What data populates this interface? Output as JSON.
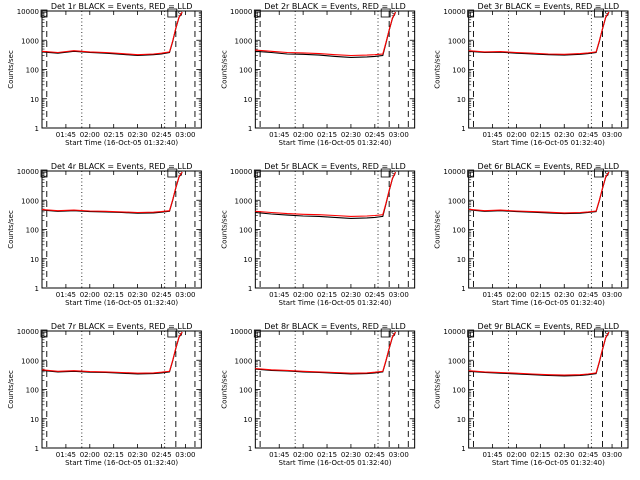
{
  "figure": {
    "xlabel": "Start Time (16-Oct-05 01:32:40)",
    "ylabel": "Counts/sec",
    "legend_text": "BLACK = Events, RED = LLD",
    "corner_marks": [
      "D",
      "S"
    ]
  },
  "colors": {
    "events": "#000000",
    "lld": "#ff0000",
    "background": "#ffffff"
  },
  "chart_data": [
    {
      "type": "line",
      "title": "Det 1r BLACK = Events, RED = LLD",
      "x_ticks": [
        "01:45",
        "02:00",
        "02:15",
        "02:30",
        "02:45",
        "03:00"
      ],
      "y_ticks": [
        "1",
        "10",
        "100",
        "1000",
        "10000"
      ],
      "ylog": true,
      "ylim": [
        1,
        10000
      ],
      "series": [
        {
          "name": "Events",
          "color": "black",
          "x": [
            0,
            10,
            20,
            30,
            40,
            50,
            60,
            70,
            75,
            80,
            82,
            84,
            86,
            88
          ],
          "y": [
            400,
            360,
            420,
            380,
            360,
            330,
            300,
            320,
            340,
            380,
            900,
            2500,
            6000,
            9000
          ]
        },
        {
          "name": "LLD",
          "color": "red",
          "x": [
            0,
            10,
            20,
            30,
            40,
            50,
            60,
            70,
            75,
            80,
            82,
            84,
            86,
            88
          ],
          "y": [
            420,
            380,
            440,
            400,
            380,
            350,
            320,
            340,
            360,
            400,
            950,
            2600,
            6200,
            9200
          ]
        }
      ]
    },
    {
      "type": "line",
      "title": "Det 2r BLACK = Events, RED = LLD",
      "x_ticks": [
        "01:45",
        "02:00",
        "02:15",
        "02:30",
        "02:45",
        "03:00"
      ],
      "y_ticks": [
        "1",
        "10",
        "100",
        "1000",
        "10000"
      ],
      "ylog": true,
      "ylim": [
        1,
        10000
      ],
      "series": [
        {
          "name": "Events",
          "color": "black",
          "x": [
            0,
            10,
            20,
            30,
            40,
            50,
            60,
            70,
            75,
            80,
            82,
            84,
            86,
            88
          ],
          "y": [
            420,
            380,
            340,
            330,
            310,
            280,
            260,
            270,
            280,
            300,
            800,
            2200,
            5500,
            9000
          ]
        },
        {
          "name": "LLD",
          "color": "red",
          "x": [
            0,
            10,
            20,
            30,
            40,
            50,
            60,
            70,
            75,
            80,
            82,
            84,
            86,
            88
          ],
          "y": [
            460,
            420,
            380,
            370,
            350,
            320,
            300,
            310,
            320,
            340,
            850,
            2300,
            5700,
            9200
          ]
        }
      ]
    },
    {
      "type": "line",
      "title": "Det 3r BLACK = Events, RED = LLD",
      "x_ticks": [
        "01:45",
        "02:00",
        "02:15",
        "02:30",
        "02:45",
        "03:00"
      ],
      "y_ticks": [
        "1",
        "10",
        "100",
        "1000",
        "10000"
      ],
      "ylog": true,
      "ylim": [
        1,
        10000
      ],
      "series": [
        {
          "name": "Events",
          "color": "black",
          "x": [
            0,
            10,
            20,
            30,
            40,
            50,
            60,
            70,
            75,
            80,
            82,
            84,
            86,
            88
          ],
          "y": [
            420,
            380,
            390,
            360,
            340,
            320,
            310,
            330,
            350,
            380,
            900,
            2400,
            6000,
            9000
          ]
        },
        {
          "name": "LLD",
          "color": "red",
          "x": [
            0,
            10,
            20,
            30,
            40,
            50,
            60,
            70,
            75,
            80,
            82,
            84,
            86,
            88
          ],
          "y": [
            440,
            400,
            410,
            380,
            360,
            340,
            330,
            350,
            370,
            400,
            950,
            2500,
            6200,
            9200
          ]
        }
      ]
    },
    {
      "type": "line",
      "title": "Det 4r BLACK = Events, RED = LLD",
      "x_ticks": [
        "01:45",
        "02:00",
        "02:15",
        "02:30",
        "02:45",
        "03:00"
      ],
      "y_ticks": [
        "1",
        "10",
        "100",
        "1000",
        "10000"
      ],
      "ylog": true,
      "ylim": [
        1,
        10000
      ],
      "series": [
        {
          "name": "Events",
          "color": "black",
          "x": [
            0,
            10,
            20,
            30,
            40,
            50,
            60,
            70,
            75,
            80,
            82,
            84,
            86,
            88
          ],
          "y": [
            460,
            420,
            440,
            410,
            400,
            380,
            360,
            370,
            390,
            420,
            1000,
            2600,
            6200,
            9000
          ]
        },
        {
          "name": "LLD",
          "color": "red",
          "x": [
            0,
            10,
            20,
            30,
            40,
            50,
            60,
            70,
            75,
            80,
            82,
            84,
            86,
            88
          ],
          "y": [
            480,
            440,
            460,
            430,
            420,
            400,
            380,
            390,
            410,
            440,
            1050,
            2700,
            6400,
            9200
          ]
        }
      ]
    },
    {
      "type": "line",
      "title": "Det 5r BLACK = Events, RED = LLD",
      "x_ticks": [
        "01:45",
        "02:00",
        "02:15",
        "02:30",
        "02:45",
        "03:00"
      ],
      "y_ticks": [
        "1",
        "10",
        "100",
        "1000",
        "10000"
      ],
      "ylog": true,
      "ylim": [
        1,
        10000
      ],
      "series": [
        {
          "name": "Events",
          "color": "black",
          "x": [
            0,
            10,
            20,
            30,
            40,
            50,
            60,
            70,
            75,
            80,
            82,
            84,
            86,
            88
          ],
          "y": [
            380,
            340,
            310,
            290,
            280,
            260,
            240,
            250,
            260,
            280,
            750,
            2100,
            5400,
            9000
          ]
        },
        {
          "name": "LLD",
          "color": "red",
          "x": [
            0,
            10,
            20,
            30,
            40,
            50,
            60,
            70,
            75,
            80,
            82,
            84,
            86,
            88
          ],
          "y": [
            420,
            380,
            350,
            330,
            320,
            300,
            280,
            290,
            300,
            320,
            800,
            2200,
            5600,
            9200
          ]
        }
      ]
    },
    {
      "type": "line",
      "title": "Det 6r BLACK = Events, RED = LLD",
      "x_ticks": [
        "01:45",
        "02:00",
        "02:15",
        "02:30",
        "02:45",
        "03:00"
      ],
      "y_ticks": [
        "1",
        "10",
        "100",
        "1000",
        "10000"
      ],
      "ylog": true,
      "ylim": [
        1,
        10000
      ],
      "series": [
        {
          "name": "Events",
          "color": "black",
          "x": [
            0,
            10,
            20,
            30,
            40,
            50,
            60,
            70,
            75,
            80,
            82,
            84,
            86,
            88
          ],
          "y": [
            470,
            420,
            440,
            410,
            390,
            370,
            350,
            360,
            380,
            410,
            950,
            2500,
            6100,
            9000
          ]
        },
        {
          "name": "LLD",
          "color": "red",
          "x": [
            0,
            10,
            20,
            30,
            40,
            50,
            60,
            70,
            75,
            80,
            82,
            84,
            86,
            88
          ],
          "y": [
            490,
            440,
            460,
            430,
            410,
            390,
            370,
            380,
            400,
            430,
            1000,
            2600,
            6300,
            9200
          ]
        }
      ]
    },
    {
      "type": "line",
      "title": "Det 7r BLACK = Events, RED = LLD",
      "x_ticks": [
        "01:45",
        "02:00",
        "02:15",
        "02:30",
        "02:45",
        "03:00"
      ],
      "y_ticks": [
        "1",
        "10",
        "100",
        "1000",
        "10000"
      ],
      "ylog": true,
      "ylim": [
        1,
        10000
      ],
      "series": [
        {
          "name": "Events",
          "color": "black",
          "x": [
            0,
            10,
            20,
            30,
            40,
            50,
            60,
            70,
            75,
            80,
            82,
            84,
            86,
            88
          ],
          "y": [
            450,
            400,
            420,
            390,
            380,
            360,
            340,
            350,
            370,
            400,
            950,
            2500,
            6100,
            9000
          ]
        },
        {
          "name": "LLD",
          "color": "red",
          "x": [
            0,
            10,
            20,
            30,
            40,
            50,
            60,
            70,
            75,
            80,
            82,
            84,
            86,
            88
          ],
          "y": [
            470,
            420,
            440,
            410,
            400,
            380,
            360,
            370,
            390,
            420,
            1000,
            2600,
            6300,
            9200
          ]
        }
      ]
    },
    {
      "type": "line",
      "title": "Det 8r BLACK = Events, RED = LLD",
      "x_ticks": [
        "01:45",
        "02:00",
        "02:15",
        "02:30",
        "02:45",
        "03:00"
      ],
      "y_ticks": [
        "1",
        "10",
        "100",
        "1000",
        "10000"
      ],
      "ylog": true,
      "ylim": [
        1,
        10000
      ],
      "series": [
        {
          "name": "Events",
          "color": "black",
          "x": [
            0,
            10,
            20,
            30,
            40,
            50,
            60,
            70,
            75,
            80,
            82,
            84,
            86,
            88
          ],
          "y": [
            500,
            450,
            430,
            400,
            380,
            360,
            340,
            350,
            370,
            400,
            950,
            2500,
            6100,
            9000
          ]
        },
        {
          "name": "LLD",
          "color": "red",
          "x": [
            0,
            10,
            20,
            30,
            40,
            50,
            60,
            70,
            75,
            80,
            82,
            84,
            86,
            88
          ],
          "y": [
            520,
            470,
            450,
            420,
            400,
            380,
            360,
            370,
            390,
            420,
            1000,
            2600,
            6300,
            9200
          ]
        }
      ]
    },
    {
      "type": "line",
      "title": "Det 9r BLACK = Events, RED = LLD",
      "x_ticks": [
        "01:45",
        "02:00",
        "02:15",
        "02:30",
        "02:45",
        "03:00"
      ],
      "y_ticks": [
        "1",
        "10",
        "100",
        "1000",
        "10000"
      ],
      "ylog": true,
      "ylim": [
        1,
        10000
      ],
      "series": [
        {
          "name": "Events",
          "color": "black",
          "x": [
            0,
            10,
            20,
            30,
            40,
            50,
            60,
            70,
            75,
            80,
            82,
            84,
            86,
            88
          ],
          "y": [
            420,
            380,
            360,
            340,
            320,
            300,
            290,
            300,
            320,
            350,
            850,
            2300,
            5800,
            9000
          ]
        },
        {
          "name": "LLD",
          "color": "red",
          "x": [
            0,
            10,
            20,
            30,
            40,
            50,
            60,
            70,
            75,
            80,
            82,
            84,
            86,
            88
          ],
          "y": [
            440,
            400,
            380,
            360,
            340,
            320,
            310,
            320,
            340,
            370,
            900,
            2400,
            6000,
            9200
          ]
        }
      ]
    }
  ]
}
